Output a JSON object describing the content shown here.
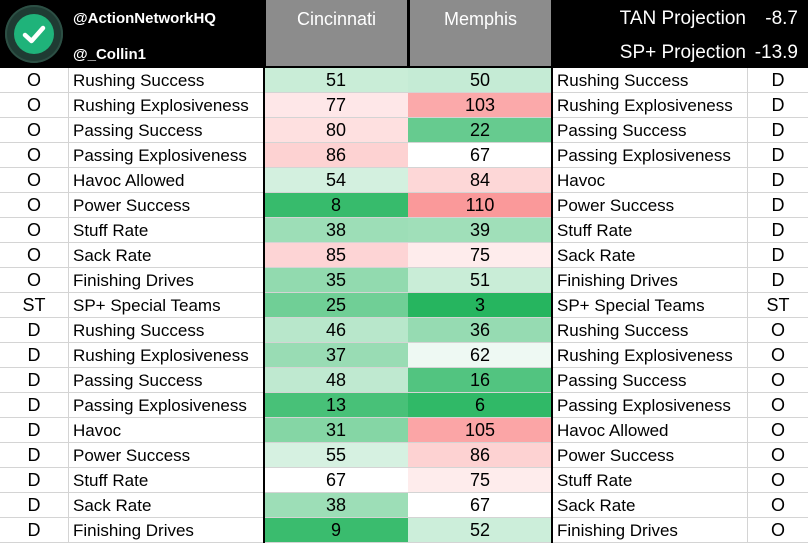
{
  "header": {
    "handle1": "@ActionNetworkHQ",
    "handle2": "@_Collin1",
    "team1": "Cincinnati",
    "team2": "Memphis",
    "projections": [
      {
        "label": "TAN Projection",
        "value": "-8.7"
      },
      {
        "label": "SP+ Projection",
        "value": "-13.9"
      }
    ]
  },
  "colors": {
    "best": "#1fb35a",
    "neutral": "#ffffff",
    "worst": "#f8696b",
    "header_bg": "#000000",
    "team_header_bg": "#8c8c8c"
  },
  "scale": {
    "best_rank": 1,
    "neutral_rank": 67,
    "worst_rank": 130
  },
  "rows": [
    {
      "side": "O",
      "stat": "Rushing Success",
      "cin": "51",
      "mem": "50",
      "stat2": "Rushing Success",
      "side2": "D"
    },
    {
      "side": "O",
      "stat": "Rushing Explosiveness",
      "cin": "77",
      "mem": "103",
      "stat2": "Rushing Explosiveness",
      "side2": "D"
    },
    {
      "side": "O",
      "stat": "Passing Success",
      "cin": "80",
      "mem": "22",
      "stat2": "Passing Success",
      "side2": "D"
    },
    {
      "side": "O",
      "stat": "Passing Explosiveness",
      "cin": "86",
      "mem": "67",
      "stat2": "Passing Explosiveness",
      "side2": "D"
    },
    {
      "side": "O",
      "stat": "Havoc Allowed",
      "cin": "54",
      "mem": "84",
      "stat2": "Havoc",
      "side2": "D"
    },
    {
      "side": "O",
      "stat": "Power Success",
      "cin": "8",
      "mem": "110",
      "stat2": "Power Success",
      "side2": "D"
    },
    {
      "side": "O",
      "stat": "Stuff Rate",
      "cin": "38",
      "mem": "39",
      "stat2": "Stuff Rate",
      "side2": "D"
    },
    {
      "side": "O",
      "stat": "Sack Rate",
      "cin": "85",
      "mem": "75",
      "stat2": "Sack Rate",
      "side2": "D"
    },
    {
      "side": "O",
      "stat": "Finishing Drives",
      "cin": "35",
      "mem": "51",
      "stat2": "Finishing Drives",
      "side2": "D"
    },
    {
      "side": "ST",
      "stat": "SP+ Special Teams",
      "cin": "25",
      "mem": "3",
      "stat2": "SP+ Special Teams",
      "side2": "ST"
    },
    {
      "side": "D",
      "stat": "Rushing Success",
      "cin": "46",
      "mem": "36",
      "stat2": "Rushing Success",
      "side2": "O"
    },
    {
      "side": "D",
      "stat": "Rushing Explosiveness",
      "cin": "37",
      "mem": "62",
      "stat2": "Rushing Explosiveness",
      "side2": "O"
    },
    {
      "side": "D",
      "stat": "Passing Success",
      "cin": "48",
      "mem": "16",
      "stat2": "Passing Success",
      "side2": "O"
    },
    {
      "side": "D",
      "stat": "Passing Explosiveness",
      "cin": "13",
      "mem": "6",
      "stat2": "Passing Explosiveness",
      "side2": "O"
    },
    {
      "side": "D",
      "stat": "Havoc",
      "cin": "31",
      "mem": "105",
      "stat2": "Havoc Allowed",
      "side2": "O"
    },
    {
      "side": "D",
      "stat": "Power Success",
      "cin": "55",
      "mem": "86",
      "stat2": "Power Success",
      "side2": "O"
    },
    {
      "side": "D",
      "stat": "Stuff Rate",
      "cin": "67",
      "mem": "75",
      "stat2": "Stuff Rate",
      "side2": "O"
    },
    {
      "side": "D",
      "stat": "Sack Rate",
      "cin": "38",
      "mem": "67",
      "stat2": "Sack Rate",
      "side2": "O"
    },
    {
      "side": "D",
      "stat": "Finishing Drives",
      "cin": "9",
      "mem": "52",
      "stat2": "Finishing Drives",
      "side2": "O"
    }
  ]
}
